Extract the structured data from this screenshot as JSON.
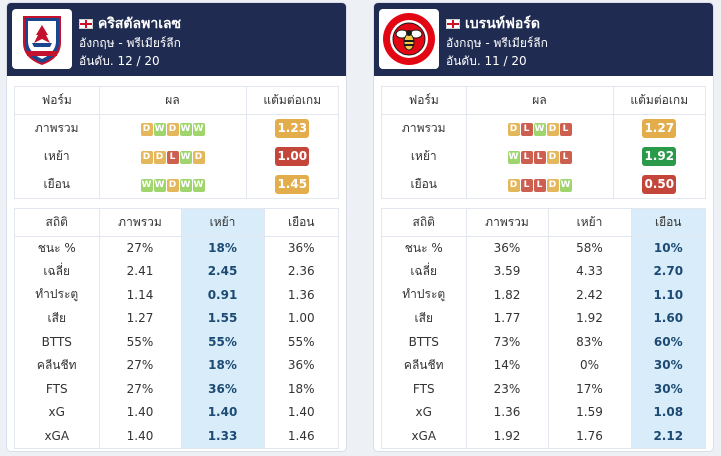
{
  "teams": [
    {
      "name": "คริสตัลพาเลซ",
      "league": "อังกฤษ - พรีเมียร์ลีก",
      "rank": "อันดับ. 12 / 20",
      "logo": "crystal-palace-logo",
      "form_headers": [
        "ฟอร์ม",
        "ผล",
        "แต้มต่อเกม"
      ],
      "form_rows": [
        {
          "label": "ภาพรวม",
          "results": [
            "D",
            "W",
            "D",
            "W",
            "W"
          ],
          "ppg": "1.23",
          "ppg_color": "#e3ad4b"
        },
        {
          "label": "เหย้า",
          "results": [
            "D",
            "D",
            "L",
            "W",
            "D"
          ],
          "ppg": "1.00",
          "ppg_color": "#c4453a"
        },
        {
          "label": "เยือน",
          "results": [
            "W",
            "W",
            "D",
            "W",
            "W"
          ],
          "ppg": "1.45",
          "ppg_color": "#e3ad4b"
        }
      ],
      "stats_headers": [
        "สถิติ",
        "ภาพรวม",
        "เหย้า",
        "เยือน"
      ],
      "highlight_col": 2,
      "stats_rows": [
        {
          "label": "ชนะ %",
          "values": [
            "27%",
            "18%",
            "36%"
          ]
        },
        {
          "label": "เฉลี่ย",
          "values": [
            "2.41",
            "2.45",
            "2.36"
          ]
        },
        {
          "label": "ทำประตู",
          "values": [
            "1.14",
            "0.91",
            "1.36"
          ]
        },
        {
          "label": "เสีย",
          "values": [
            "1.27",
            "1.55",
            "1.00"
          ]
        },
        {
          "label": "BTTS",
          "values": [
            "55%",
            "55%",
            "55%"
          ]
        },
        {
          "label": "คลีนชีท",
          "values": [
            "27%",
            "18%",
            "36%"
          ]
        },
        {
          "label": "FTS",
          "values": [
            "27%",
            "36%",
            "18%"
          ]
        },
        {
          "label": "xG",
          "values": [
            "1.40",
            "1.40",
            "1.40"
          ]
        },
        {
          "label": "xGA",
          "values": [
            "1.40",
            "1.33",
            "1.46"
          ]
        }
      ]
    },
    {
      "name": "เบรนท์ฟอร์ด",
      "league": "อังกฤษ - พรีเมียร์ลีก",
      "rank": "อันดับ. 11 / 20",
      "logo": "brentford-logo",
      "form_headers": [
        "ฟอร์ม",
        "ผล",
        "แต้มต่อเกม"
      ],
      "form_rows": [
        {
          "label": "ภาพรวม",
          "results": [
            "D",
            "L",
            "W",
            "D",
            "L"
          ],
          "ppg": "1.27",
          "ppg_color": "#e3ad4b"
        },
        {
          "label": "เหย้า",
          "results": [
            "W",
            "L",
            "L",
            "D",
            "L"
          ],
          "ppg": "1.92",
          "ppg_color": "#2a9a4a"
        },
        {
          "label": "เยือน",
          "results": [
            "D",
            "L",
            "L",
            "D",
            "W"
          ],
          "ppg": "0.50",
          "ppg_color": "#c4453a"
        }
      ],
      "stats_headers": [
        "สถิติ",
        "ภาพรวม",
        "เหย้า",
        "เยือน"
      ],
      "highlight_col": 3,
      "stats_rows": [
        {
          "label": "ชนะ %",
          "values": [
            "36%",
            "58%",
            "10%"
          ]
        },
        {
          "label": "เฉลี่ย",
          "values": [
            "3.59",
            "4.33",
            "2.70"
          ]
        },
        {
          "label": "ทำประตู",
          "values": [
            "1.82",
            "2.42",
            "1.10"
          ]
        },
        {
          "label": "เสีย",
          "values": [
            "1.77",
            "1.92",
            "1.60"
          ]
        },
        {
          "label": "BTTS",
          "values": [
            "73%",
            "83%",
            "60%"
          ]
        },
        {
          "label": "คลีนชีท",
          "values": [
            "14%",
            "0%",
            "30%"
          ]
        },
        {
          "label": "FTS",
          "values": [
            "23%",
            "17%",
            "30%"
          ]
        },
        {
          "label": "xG",
          "values": [
            "1.36",
            "1.59",
            "1.08"
          ]
        },
        {
          "label": "xGA",
          "values": [
            "1.92",
            "1.76",
            "2.12"
          ]
        }
      ]
    }
  ]
}
